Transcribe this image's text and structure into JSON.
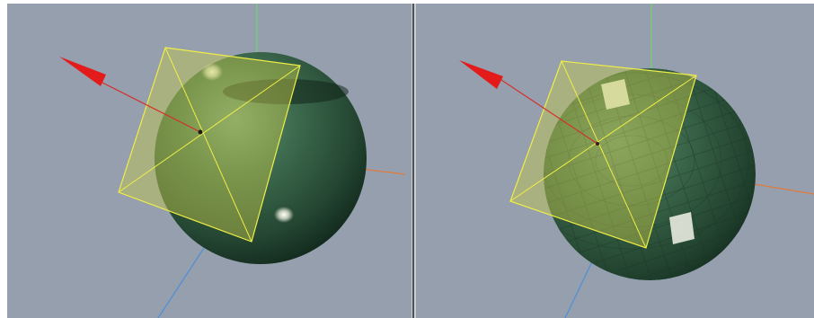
{
  "app": {
    "description_free": true
  },
  "colors": {
    "background": "#959fae",
    "sphere_base": "#254a33",
    "sphere_light": "#5f8a6f",
    "plane_fill": "#c3c84a",
    "plane_edge": "#f0ee46",
    "axis_x_red": "#e41b1b",
    "axis_y_green": "#6fd36f",
    "axis_z_blue": "#4c8fd6",
    "axis_orange": "#e07a3d"
  },
  "viewports": [
    {
      "id": "left",
      "shading": "smooth"
    },
    {
      "id": "right",
      "shading": "faceted"
    }
  ]
}
